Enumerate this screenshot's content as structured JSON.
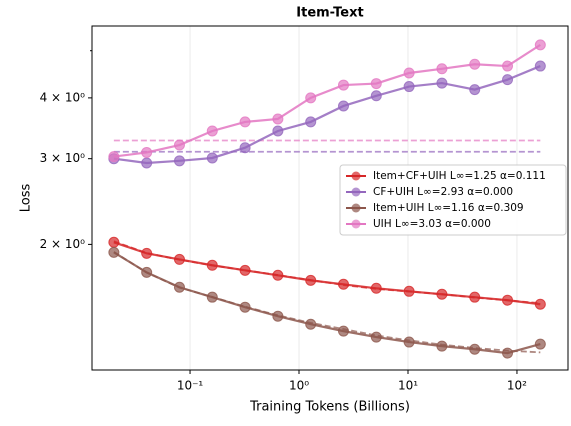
{
  "chart_data": {
    "type": "line",
    "title": "Item-Text",
    "x_label": "Training Tokens (Billions)",
    "y_label": "Loss",
    "x": [
      0.02,
      0.04,
      0.08,
      0.16,
      0.32,
      0.64,
      1.28,
      2.56,
      5.12,
      10.24,
      20.48,
      40.96,
      81.92,
      163.84
    ],
    "log_x": true,
    "log_y": true,
    "grid": "x",
    "legend": "right",
    "xlim": [
      0.0126,
      294
    ],
    "ylim": [
      1.104,
      5.62
    ],
    "xticks": [
      {
        "value": 0.1,
        "label": "10⁻¹"
      },
      {
        "value": 1,
        "label": "10⁰"
      },
      {
        "value": 10,
        "label": "10¹"
      },
      {
        "value": 100,
        "label": "10²"
      }
    ],
    "yticks": [
      {
        "value": 2,
        "label": "2 × 10⁰"
      },
      {
        "value": 3,
        "label": "3 × 10⁰"
      },
      {
        "value": 4,
        "label": "4 × 10⁰"
      }
    ],
    "yminor_ticks": [
      5
    ],
    "series": [
      {
        "name": "Item+CF+UIH L∞=1.25 α=0.111",
        "color": "#d62728",
        "values": [
          2.02,
          1.917,
          1.863,
          1.812,
          1.769,
          1.728,
          1.687,
          1.656,
          1.625,
          1.602,
          1.58,
          1.558,
          1.536,
          1.507
        ],
        "fit": [
          2.03,
          1.92,
          1.86,
          1.81,
          1.77,
          1.73,
          1.69,
          1.65,
          1.62,
          1.6,
          1.58,
          1.555,
          1.535,
          1.515
        ]
      },
      {
        "name": "CF+UIH L∞=2.93 α=0.000",
        "color": "#9467bd",
        "values": [
          3.0,
          2.94,
          2.97,
          3.01,
          3.16,
          3.42,
          3.57,
          3.85,
          4.04,
          4.22,
          4.29,
          4.16,
          4.36,
          4.65
        ],
        "fit": [
          3.1,
          3.1,
          3.1,
          3.1,
          3.1,
          3.1,
          3.1,
          3.1,
          3.1,
          3.1,
          3.1,
          3.1,
          3.1,
          3.1
        ]
      },
      {
        "name": "Item+UIH L∞=1.16 α=0.309",
        "color": "#8c564b",
        "values": [
          1.926,
          1.752,
          1.633,
          1.558,
          1.486,
          1.424,
          1.371,
          1.327,
          1.29,
          1.26,
          1.236,
          1.218,
          1.196,
          1.248
        ],
        "fit": [
          1.93,
          1.75,
          1.63,
          1.56,
          1.49,
          1.43,
          1.38,
          1.34,
          1.3,
          1.27,
          1.245,
          1.225,
          1.21,
          1.2
        ]
      },
      {
        "name": "UIH L∞=3.03 α=0.000",
        "color": "#e377c2",
        "values": [
          3.03,
          3.09,
          3.2,
          3.42,
          3.57,
          3.62,
          4.0,
          4.25,
          4.28,
          4.5,
          4.59,
          4.69,
          4.65,
          5.14
        ],
        "fit": [
          3.27,
          3.27,
          3.27,
          3.27,
          3.27,
          3.27,
          3.27,
          3.27,
          3.27,
          3.27,
          3.27,
          3.27,
          3.27,
          3.27
        ]
      }
    ]
  }
}
